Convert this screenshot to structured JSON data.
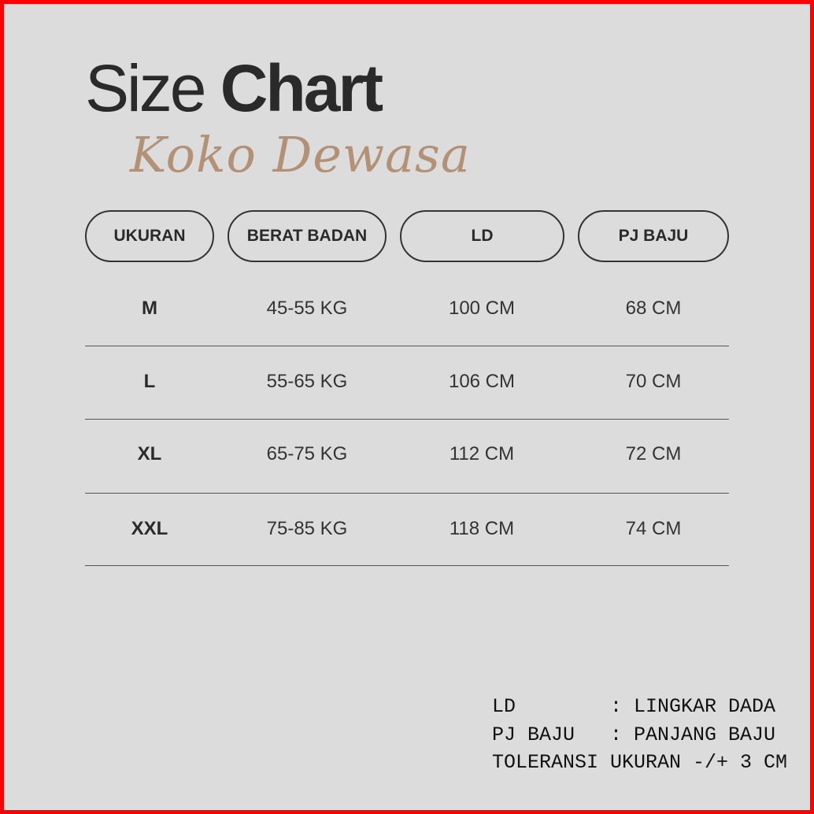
{
  "title": {
    "light": "Size",
    "bold": "Chart"
  },
  "subtitle": "Koko Dewasa",
  "colors": {
    "background": "#dcdcdc",
    "border": "#ff0000",
    "subtitle": "#b39176",
    "text": "#2a2a2a"
  },
  "table": {
    "headers": [
      "UKURAN",
      "BERAT BADAN",
      "LD",
      "PJ BAJU"
    ],
    "rows": [
      [
        "M",
        "45-55 KG",
        "100 CM",
        "68 CM"
      ],
      [
        "L",
        "55-65 KG",
        "106 CM",
        "70 CM"
      ],
      [
        "XL",
        "65-75 KG",
        "112 CM",
        "72 CM"
      ],
      [
        "XXL",
        "75-85 KG",
        "118 CM",
        "74 CM"
      ]
    ]
  },
  "notes": [
    "LD        : LINGKAR DADA",
    "PJ BAJU   : PANJANG BAJU",
    "TOLERANSI UKURAN -/+ 3 CM"
  ]
}
